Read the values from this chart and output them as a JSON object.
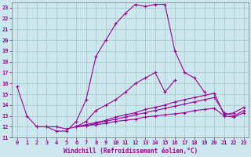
{
  "xlabel": "Windchill (Refroidissement éolien,°C)",
  "xlim": [
    -0.5,
    23.5
  ],
  "ylim": [
    11,
    23.5
  ],
  "xticks": [
    0,
    1,
    2,
    3,
    4,
    5,
    6,
    7,
    8,
    9,
    10,
    11,
    12,
    13,
    14,
    15,
    16,
    17,
    18,
    19,
    20,
    21,
    22,
    23
  ],
  "yticks": [
    11,
    12,
    13,
    14,
    15,
    16,
    17,
    18,
    19,
    20,
    21,
    22,
    23
  ],
  "bg_color": "#cce8ee",
  "line_color": "#990099",
  "grid_color": "#9bbfbf",
  "lines": [
    {
      "x": [
        0,
        1,
        2,
        3,
        4,
        5,
        6,
        7,
        8,
        9,
        10,
        11,
        12,
        13,
        14,
        15,
        16,
        17,
        18,
        19
      ],
      "y": [
        15.7,
        13.0,
        12.0,
        12.0,
        11.6,
        11.6,
        12.5,
        14.5,
        18.5,
        20.0,
        21.5,
        22.5,
        23.3,
        23.1,
        23.3,
        23.3,
        19.0,
        17.0,
        16.5,
        15.2
      ]
    },
    {
      "x": [
        2,
        3,
        4,
        5,
        6,
        7,
        8,
        9,
        10,
        11,
        12,
        13,
        14,
        15,
        16
      ],
      "y": [
        12.0,
        12.0,
        12.0,
        11.8,
        12.0,
        12.5,
        13.5,
        14.0,
        14.5,
        15.2,
        16.0,
        16.5,
        17.0,
        15.2,
        16.3
      ]
    },
    {
      "x": [
        6,
        7,
        8,
        9,
        10,
        11,
        12,
        13,
        14,
        15,
        16,
        17,
        18,
        19,
        20,
        21,
        22,
        23
      ],
      "y": [
        12.0,
        12.2,
        12.4,
        12.6,
        12.9,
        13.1,
        13.3,
        13.6,
        13.8,
        14.0,
        14.3,
        14.5,
        14.7,
        14.9,
        15.1,
        13.1,
        13.3,
        13.8
      ]
    },
    {
      "x": [
        6,
        7,
        8,
        9,
        10,
        11,
        12,
        13,
        14,
        15,
        16,
        17,
        18,
        19,
        20,
        21,
        22,
        23
      ],
      "y": [
        12.0,
        12.1,
        12.3,
        12.5,
        12.7,
        12.9,
        13.1,
        13.3,
        13.5,
        13.7,
        13.9,
        14.1,
        14.3,
        14.5,
        14.7,
        13.3,
        13.0,
        13.5
      ]
    },
    {
      "x": [
        6,
        7,
        8,
        9,
        10,
        11,
        12,
        13,
        14,
        15,
        16,
        17,
        18,
        19,
        20,
        21,
        22,
        23
      ],
      "y": [
        12.0,
        12.1,
        12.2,
        12.3,
        12.5,
        12.6,
        12.7,
        12.9,
        13.0,
        13.1,
        13.2,
        13.3,
        13.5,
        13.6,
        13.7,
        13.0,
        12.9,
        13.3
      ]
    }
  ]
}
